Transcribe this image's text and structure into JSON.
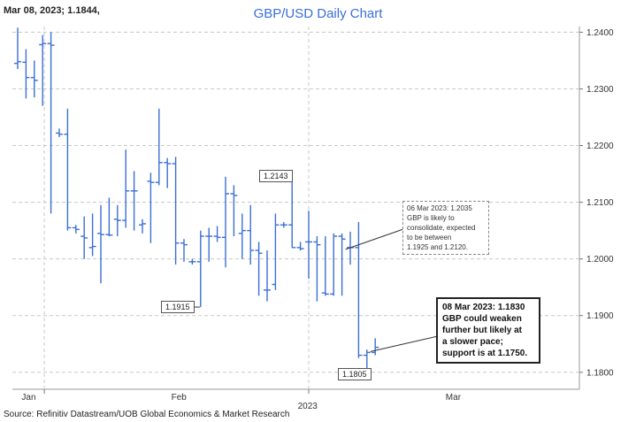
{
  "header": {
    "label": "Mar 08, 2023; 1.1844,"
  },
  "chart_data": {
    "type": "ohlc",
    "title": "GBP/USD Daily Chart",
    "ylim": [
      1.177,
      1.241
    ],
    "yticks": [
      "1.2400",
      "1.2300",
      "1.2200",
      "1.2100",
      "1.2000",
      "1.1900",
      "1.1800"
    ],
    "ytick_values": [
      1.24,
      1.23,
      1.22,
      1.21,
      1.2,
      1.19,
      1.18
    ],
    "xlabels": [
      {
        "label": "Jan",
        "index": 1
      },
      {
        "label": "Feb",
        "index": 19
      },
      {
        "label": "2023",
        "index": 34
      },
      {
        "label": "Mar",
        "index": 52
      }
    ],
    "bars": [
      {
        "i": 0,
        "o": 1.2345,
        "h": 1.2408,
        "l": 1.2335,
        "c": 1.2348
      },
      {
        "i": 1,
        "o": 1.2347,
        "h": 1.237,
        "l": 1.2283,
        "c": 1.232
      },
      {
        "i": 2,
        "o": 1.232,
        "h": 1.235,
        "l": 1.2285,
        "c": 1.2315
      },
      {
        "i": 3,
        "o": 1.2378,
        "h": 1.2395,
        "l": 1.227,
        "c": 1.238
      },
      {
        "i": 4,
        "o": 1.238,
        "h": 1.24,
        "l": 1.208,
        "c": 1.2377
      },
      {
        "i": 5,
        "o": 1.2222,
        "h": 1.223,
        "l": 1.2215,
        "c": 1.222
      },
      {
        "i": 6,
        "o": 1.222,
        "h": 1.2265,
        "l": 1.205,
        "c": 1.2055
      },
      {
        "i": 7,
        "o": 1.2055,
        "h": 1.206,
        "l": 1.2045,
        "c": 1.2052
      },
      {
        "i": 8,
        "o": 1.204,
        "h": 1.2075,
        "l": 1.2,
        "c": 1.2037
      },
      {
        "i": 9,
        "o": 1.202,
        "h": 1.208,
        "l": 1.2005,
        "c": 1.2022
      },
      {
        "i": 10,
        "o": 1.2045,
        "h": 1.2095,
        "l": 1.1957,
        "c": 1.2043
      },
      {
        "i": 11,
        "o": 1.2043,
        "h": 1.2108,
        "l": 1.204,
        "c": 1.2042
      },
      {
        "i": 12,
        "o": 1.207,
        "h": 1.2095,
        "l": 1.204,
        "c": 1.2068
      },
      {
        "i": 13,
        "o": 1.2068,
        "h": 1.2193,
        "l": 1.2055,
        "c": 1.212
      },
      {
        "i": 14,
        "o": 1.212,
        "h": 1.2155,
        "l": 1.205,
        "c": 1.212
      },
      {
        "i": 15,
        "o": 1.206,
        "h": 1.207,
        "l": 1.2045,
        "c": 1.2062
      },
      {
        "i": 16,
        "o": 1.2137,
        "h": 1.2152,
        "l": 1.2028,
        "c": 1.2135
      },
      {
        "i": 17,
        "o": 1.2135,
        "h": 1.2265,
        "l": 1.213,
        "c": 1.217
      },
      {
        "i": 18,
        "o": 1.217,
        "h": 1.2178,
        "l": 1.2125,
        "c": 1.2168
      },
      {
        "i": 19,
        "o": 1.2168,
        "h": 1.218,
        "l": 1.199,
        "c": 1.2028
      },
      {
        "i": 20,
        "o": 1.2028,
        "h": 1.2035,
        "l": 1.1995,
        "c": 1.2025
      },
      {
        "i": 21,
        "o": 1.1995,
        "h": 1.2,
        "l": 1.199,
        "c": 1.1995
      },
      {
        "i": 22,
        "o": 1.1995,
        "h": 1.205,
        "l": 1.1915,
        "c": 1.204
      },
      {
        "i": 23,
        "o": 1.204,
        "h": 1.2055,
        "l": 1.1995,
        "c": 1.204
      },
      {
        "i": 24,
        "o": 1.204,
        "h": 1.2058,
        "l": 1.203,
        "c": 1.2038
      },
      {
        "i": 25,
        "o": 1.2038,
        "h": 1.2145,
        "l": 1.1985,
        "c": 1.2115
      },
      {
        "i": 26,
        "o": 1.2115,
        "h": 1.213,
        "l": 1.204,
        "c": 1.2112
      },
      {
        "i": 27,
        "o": 1.2045,
        "h": 1.208,
        "l": 1.2,
        "c": 1.205
      },
      {
        "i": 28,
        "o": 1.205,
        "h": 1.2095,
        "l": 1.199,
        "c": 1.2015
      },
      {
        "i": 29,
        "o": 1.2015,
        "h": 1.203,
        "l": 1.1935,
        "c": 1.201
      },
      {
        "i": 30,
        "o": 1.1945,
        "h": 1.2015,
        "l": 1.1925,
        "c": 1.1945
      },
      {
        "i": 31,
        "o": 1.1955,
        "h": 1.208,
        "l": 1.1945,
        "c": 1.206
      },
      {
        "i": 32,
        "o": 1.206,
        "h": 1.2065,
        "l": 1.2055,
        "c": 1.206
      },
      {
        "i": 33,
        "o": 1.206,
        "h": 1.2143,
        "l": 1.202,
        "c": 1.202
      },
      {
        "i": 34,
        "o": 1.202,
        "h": 1.203,
        "l": 1.2015,
        "c": 1.2018
      },
      {
        "i": 35,
        "o": 1.203,
        "h": 1.2085,
        "l": 1.1965,
        "c": 1.203
      },
      {
        "i": 36,
        "o": 1.203,
        "h": 1.204,
        "l": 1.1925,
        "c": 1.2025
      },
      {
        "i": 37,
        "o": 1.194,
        "h": 1.204,
        "l": 1.1935,
        "c": 1.1938
      },
      {
        "i": 38,
        "o": 1.1938,
        "h": 1.2045,
        "l": 1.1935,
        "c": 1.204
      },
      {
        "i": 39,
        "o": 1.204,
        "h": 1.2045,
        "l": 1.1935,
        "c": 1.2035
      },
      {
        "i": 40,
        "o": 1.202,
        "h": 1.2048,
        "l": 1.199,
        "c": 1.202
      },
      {
        "i": 41,
        "o": 1.202,
        "h": 1.2065,
        "l": 1.1825,
        "c": 1.183
      },
      {
        "i": 42,
        "o": 1.183,
        "h": 1.184,
        "l": 1.1805,
        "c": 1.1835
      },
      {
        "i": 43,
        "o": 1.1835,
        "h": 1.186,
        "l": 1.183,
        "c": 1.1844
      }
    ],
    "annotations": [
      {
        "label": "1.2143"
      },
      {
        "label": "1.1915"
      },
      {
        "label": "1.1805"
      }
    ],
    "notes": {
      "mar06": [
        "06 Mar 2023: 1.2035",
        "GBP is likely to",
        "consolidate, expected",
        "to be between",
        "1.1925 and 1.2120."
      ],
      "mar08": [
        "08 Mar 2023: 1.1830",
        "GBP could weaken",
        "further but likely at",
        "a slower pace;",
        "support is at 1.1750."
      ]
    },
    "colors": {
      "bar": "#3b6fd6",
      "grid": "#c8c8c8",
      "title": "#3a6fd8"
    }
  },
  "footer": {
    "source": "Source: Refinitiv Datastream/UOB Global Economics & Market Research"
  }
}
